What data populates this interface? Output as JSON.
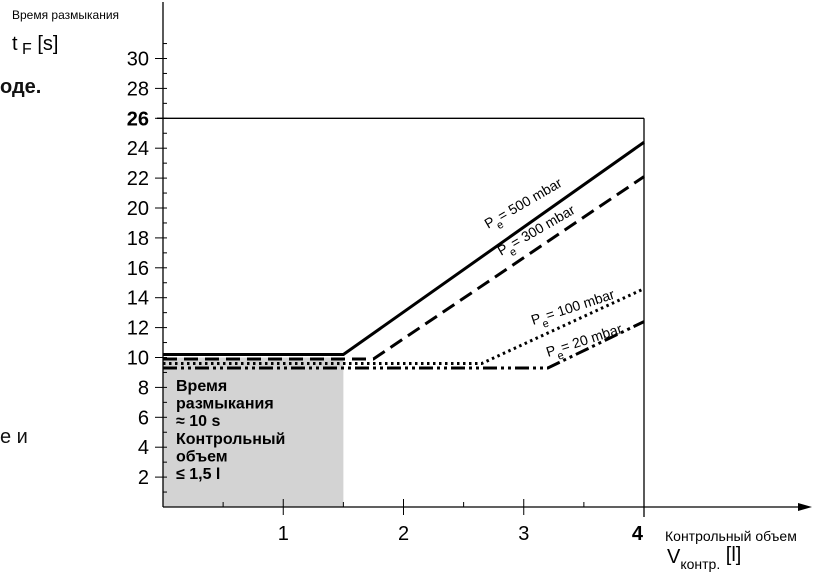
{
  "page_fragments": {
    "left_text_1": "оде.",
    "left_text_2": "е и"
  },
  "chart_data": {
    "type": "line",
    "ylabel": "Время размыкания",
    "ylabel_symbol": "t",
    "ylabel_subscript": "F",
    "ylabel_unit": "[s]",
    "xlabel": "Контрольный объем",
    "xlabel_symbol": "V",
    "xlabel_subscript": "контр.",
    "xlabel_unit": "[l]",
    "xlim": [
      0,
      4
    ],
    "ylim": [
      0,
      30
    ],
    "xticks": [
      "1",
      "2",
      "3",
      "4"
    ],
    "yticks": [
      "2",
      "4",
      "6",
      "8",
      "10",
      "12",
      "14",
      "16",
      "18",
      "20",
      "22",
      "24",
      "26",
      "28",
      "30"
    ],
    "highlight_y": 26,
    "highlight_x": 4,
    "box_color": "#d3d3d3",
    "box_range": {
      "x": [
        0,
        1.5
      ],
      "y": [
        0,
        10
      ]
    },
    "box_text": [
      "Время",
      "размыкания",
      "≈ 10 s",
      "Контрольный",
      "объем",
      "≤ 1,5 l"
    ],
    "series": [
      {
        "label": "Pe = 500 mbar",
        "label_main": "P",
        "label_sub": "e",
        "label_rest": "= 500 mbar",
        "style": "solid",
        "points": [
          [
            0,
            10.2
          ],
          [
            1.5,
            10.2
          ],
          [
            4,
            24.4
          ]
        ]
      },
      {
        "label": "Pe = 300 mbar",
        "label_main": "P",
        "label_sub": "e",
        "label_rest": "= 300 mbar",
        "style": "dashed",
        "points": [
          [
            0,
            9.9
          ],
          [
            1.75,
            9.9
          ],
          [
            4,
            22.1
          ]
        ]
      },
      {
        "label": "Pe = 100 mbar",
        "label_main": "P",
        "label_sub": "e",
        "label_rest": "= 100 mbar",
        "style": "dotted",
        "points": [
          [
            0,
            9.6
          ],
          [
            2.65,
            9.6
          ],
          [
            4,
            14.6
          ]
        ]
      },
      {
        "label": "Pe = 20 mbar",
        "label_main": "P",
        "label_sub": "e",
        "label_rest": "= 20 mbar",
        "style": "dashdot",
        "points": [
          [
            0,
            9.3
          ],
          [
            3.2,
            9.3
          ],
          [
            4,
            12.4
          ]
        ]
      }
    ]
  }
}
